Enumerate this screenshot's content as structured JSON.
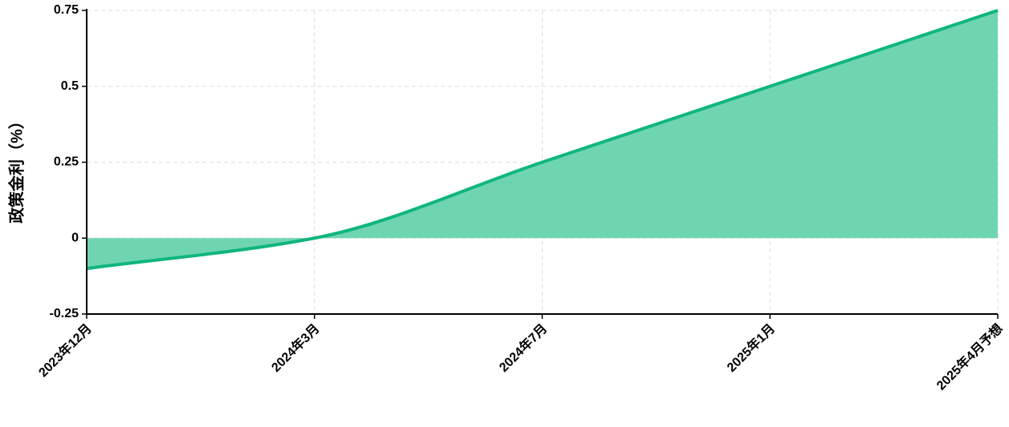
{
  "chart_data": {
    "type": "area",
    "y_label": "政策金利（%）",
    "categories": [
      "2023年12月",
      "2024年3月",
      "2024年7月",
      "2025年1月",
      "2025年4月予想"
    ],
    "values": [
      -0.1,
      0,
      0.25,
      0.5,
      0.75
    ],
    "color": "#10b57f",
    "fill": "#6fd5b0",
    "ylim": [
      -0.25,
      0.75
    ],
    "yticks": [
      -0.25,
      0,
      0.25,
      0.5,
      0.75
    ],
    "grid": true
  }
}
